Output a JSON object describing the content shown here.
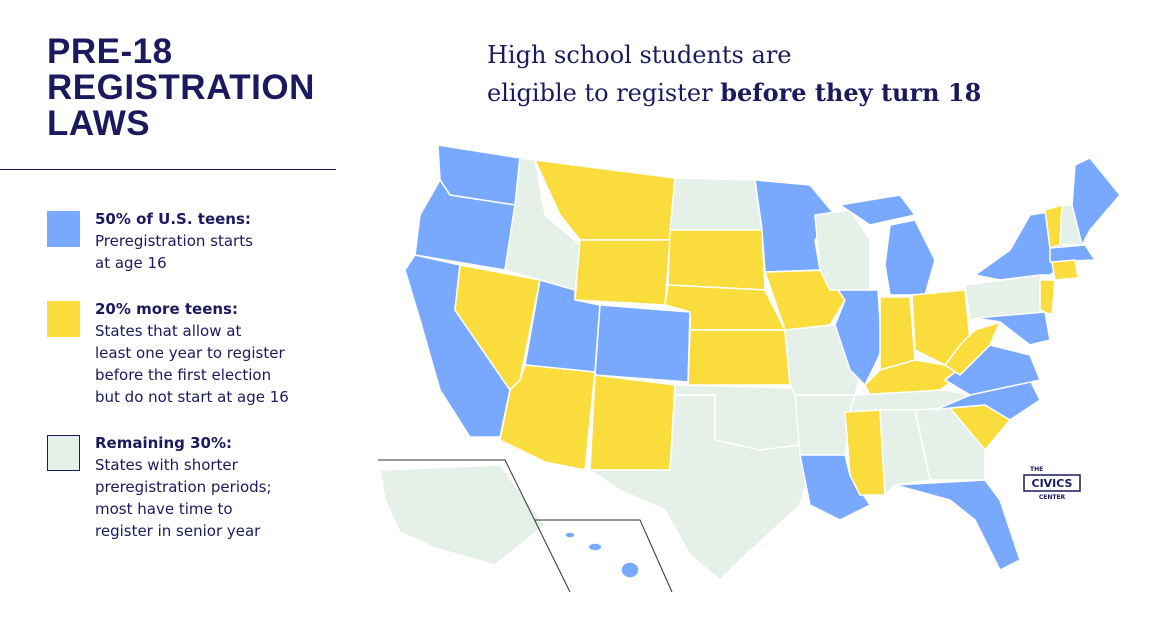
{
  "title": [
    "PRE-18",
    "REGISTRATION",
    "LAWS"
  ],
  "headline": {
    "line1": "High school students are",
    "line2": "eligible to register",
    "emphasis": "before they turn 18"
  },
  "legend": {
    "items": [
      {
        "color": "#78a9ff",
        "heading": "50% of U.S. teens:",
        "lines": [
          "Preregistration starts",
          "at age 16"
        ]
      },
      {
        "color": "#fadc3c",
        "heading": "20% more teens:",
        "lines": [
          "States that allow at",
          "least one year to register",
          "before the first election",
          "but do not start at age 16"
        ]
      },
      {
        "color": "#e4f0e8",
        "heading": "Remaining 30%:",
        "lines": [
          "States with shorter",
          "preregistration periods;",
          "most have time to",
          "register in senior year"
        ]
      }
    ]
  },
  "logo": {
    "top": "THE",
    "main": "CIVICS",
    "bottom": "CENTER"
  }
}
